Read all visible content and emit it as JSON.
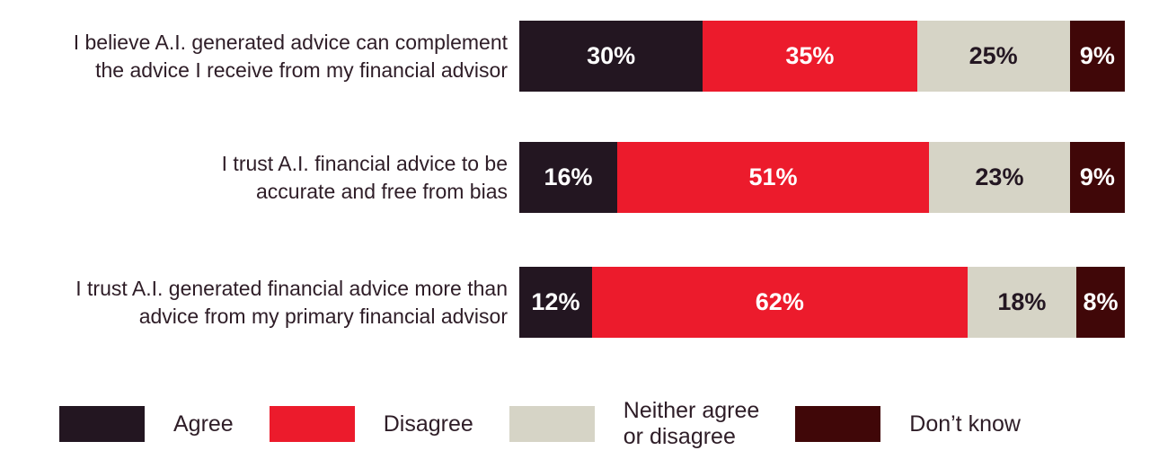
{
  "chart_data": {
    "type": "bar",
    "stacked": true,
    "orientation": "horizontal",
    "title": "",
    "xlabel": "",
    "ylabel": "",
    "grid": false,
    "axes_hidden": true,
    "legend_position": "bottom",
    "value_label_format": "{value}%",
    "categories": [
      "I believe A.I. generated advice can complement the advice I receive from my financial advisor",
      "I trust A.I. financial advice to be accurate and free from bias",
      "I trust A.I. generated financial advice more than advice from my primary financial advisor"
    ],
    "series": [
      {
        "name": "Agree",
        "color": "#231621",
        "label_color": "#ffffff",
        "values": [
          30,
          16,
          12
        ]
      },
      {
        "name": "Disagree",
        "color": "#ec1b2c",
        "label_color": "#ffffff",
        "values": [
          35,
          51,
          62
        ]
      },
      {
        "name": "Neither agree or disagree",
        "color": "#d6d4c6",
        "label_color": "#241722",
        "values": [
          25,
          23,
          18
        ]
      },
      {
        "name": "Don’t know",
        "color": "#400708",
        "label_color": "#ffffff",
        "values": [
          9,
          9,
          8
        ]
      }
    ]
  },
  "display": {
    "category_labels": [
      "I believe A.I. generated advice can complement\nthe advice I receive from my financial advisor",
      "I trust A.I. financial advice to be\naccurate and free from bias",
      "I trust A.I. generated financial advice more than\nadvice from my primary financial advisor"
    ],
    "segment_labels": [
      [
        "30%",
        "35%",
        "25%",
        "9%"
      ],
      [
        "16%",
        "51%",
        "23%",
        "9%"
      ],
      [
        "12%",
        "62%",
        "18%",
        "8%"
      ]
    ],
    "legend_labels": [
      "Agree",
      "Disagree",
      "Neither agree\nor disagree",
      "Don’t know"
    ]
  },
  "colors": {
    "background": "#ffffff",
    "category_text": "#2e1d27",
    "legend_text": "#2e1d27"
  }
}
